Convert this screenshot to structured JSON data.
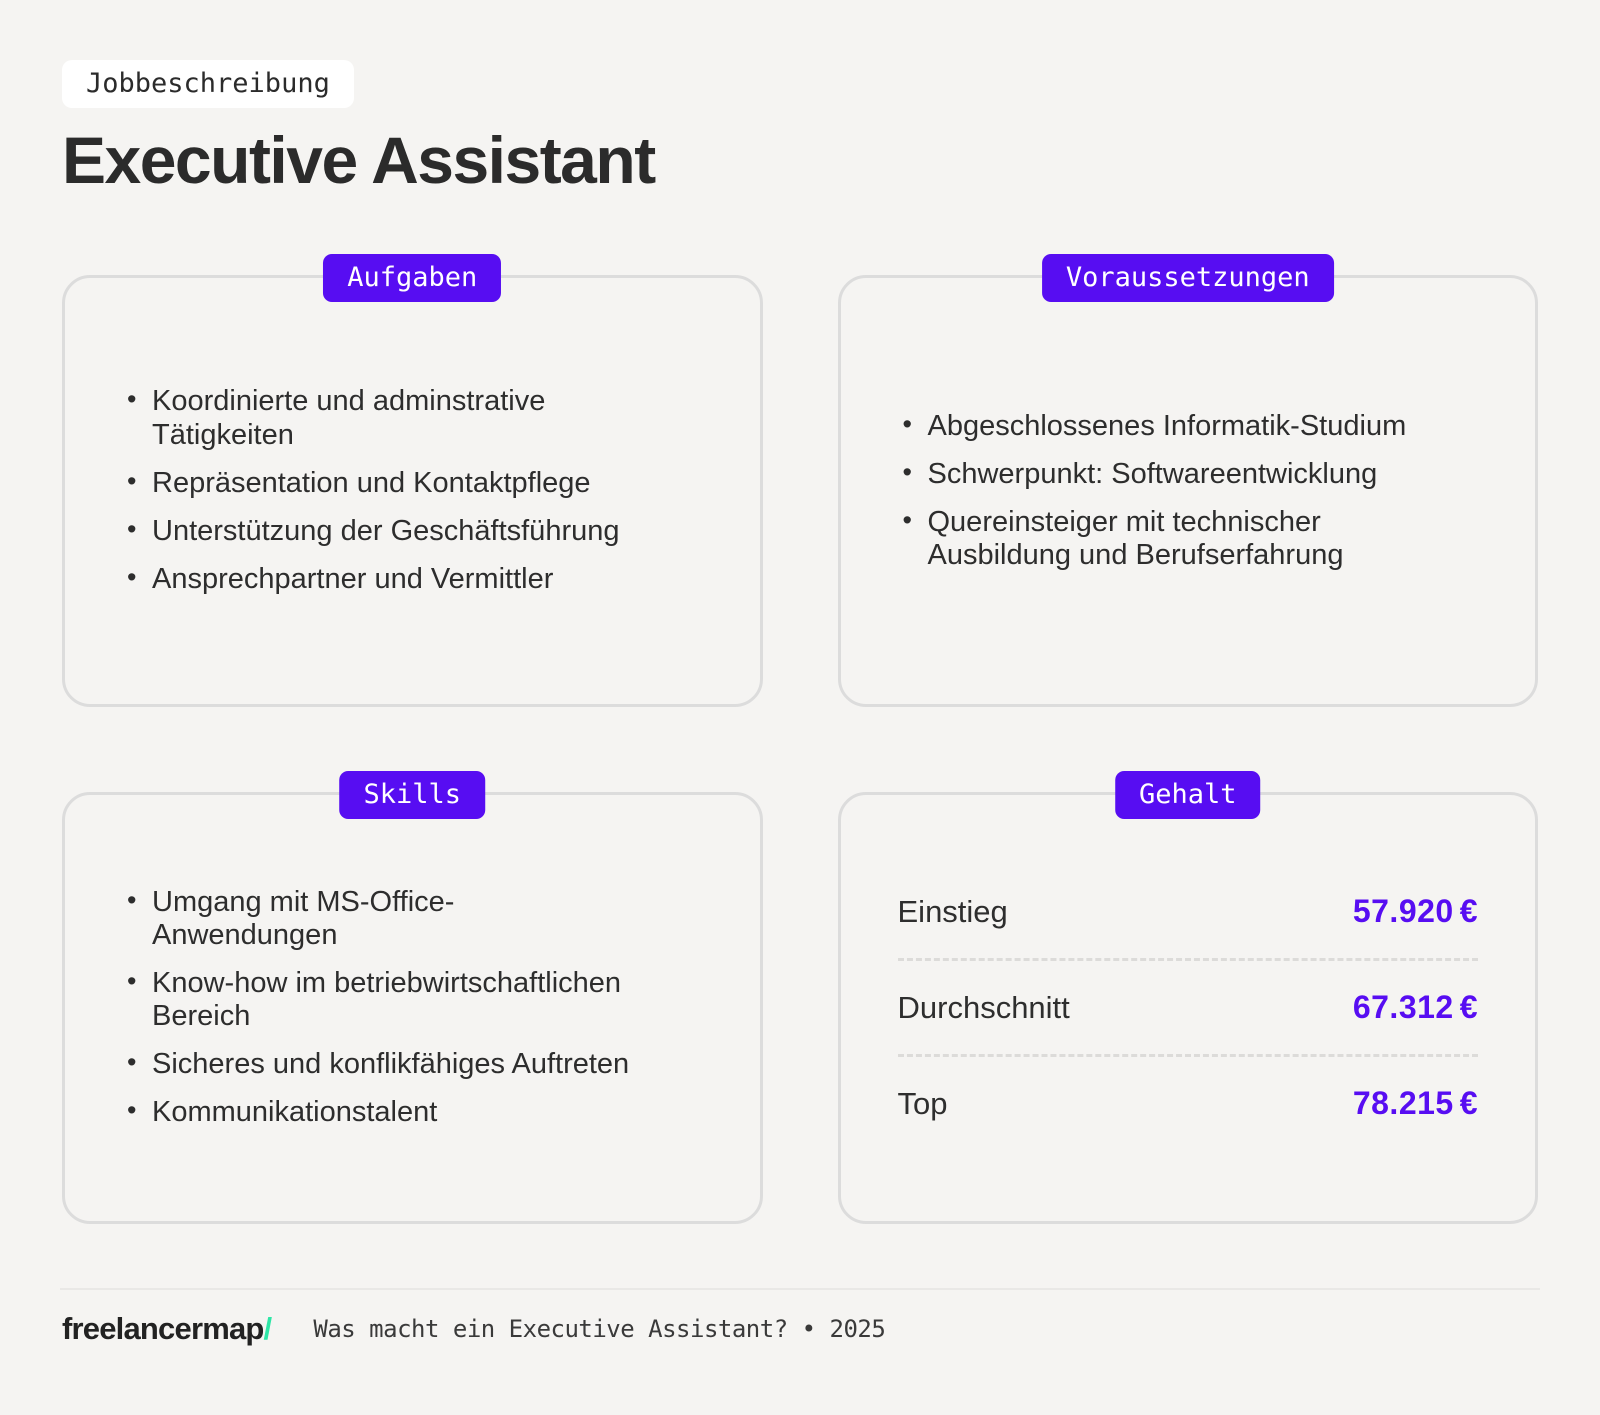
{
  "theme": {
    "background": "#f5f4f2",
    "accent_purple": "#570df2",
    "badge_text_color": "#ffffff",
    "card_border": "#dcdcdc",
    "logo_slash_color": "#2ee6a6"
  },
  "header": {
    "tag": "Jobbeschreibung",
    "title": "Executive Assistant"
  },
  "cards": [
    {
      "id": "aufgaben",
      "badge": "Aufgaben",
      "items": [
        [
          "Koordinierte und adminstrative",
          "Tätigkeiten"
        ],
        [
          "Repräsentation und Kontaktpflege"
        ],
        [
          "Unterstützung der Geschäftsführung"
        ],
        [
          "Ansprechpartner und Vermittler"
        ]
      ]
    },
    {
      "id": "voraussetzungen",
      "badge": "Voraussetzungen",
      "items": [
        [
          "Abgeschlossenes Informatik-Studium"
        ],
        [
          "Schwerpunkt: Softwareentwicklung"
        ],
        [
          "Quereinsteiger mit technischer",
          "Ausbildung und Berufserfahrung"
        ]
      ]
    },
    {
      "id": "skills",
      "badge": "Skills",
      "items": [
        [
          "Umgang mit MS-Office-",
          "Anwendungen"
        ],
        [
          "Know-how im betriebwirtschaftlichen",
          "Bereich"
        ],
        [
          "Sicheres und konflikfähiges Auftreten"
        ],
        [
          "Kommunikationstalent"
        ]
      ]
    },
    {
      "id": "gehalt",
      "badge": "Gehalt",
      "salary_rows": [
        {
          "label": "Einstieg",
          "value": "57.920",
          "currency": "€"
        },
        {
          "label": "Durchschnitt",
          "value": "67.312",
          "currency": "€"
        },
        {
          "label": "Top",
          "value": "78.215",
          "currency": "€"
        }
      ]
    }
  ],
  "footer": {
    "logo_text": "freelancermap",
    "logo_slash": "/",
    "tagline": "Was macht ein Executive Assistant? • 2025"
  }
}
